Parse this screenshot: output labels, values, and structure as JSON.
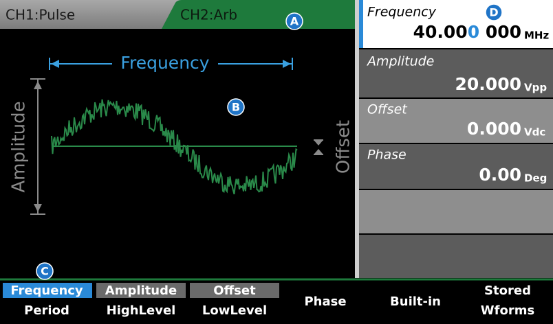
{
  "tabs": [
    {
      "label": "CH1:Pulse"
    },
    {
      "label": "CH2:Arb"
    }
  ],
  "display": {
    "frequency_label": "Frequency",
    "amplitude_label": "Amplitude",
    "offset_label": "Offset"
  },
  "parameters": [
    {
      "label": "Frequency",
      "value_parts": [
        "40.00",
        "0",
        " 000"
      ],
      "unit": "MHz"
    },
    {
      "label": "Amplitude",
      "value": "20.000",
      "unit": "Vpp"
    },
    {
      "label": "Offset",
      "value": "0.000",
      "unit": "Vdc"
    },
    {
      "label": "Phase",
      "value": "0.00",
      "unit": "Deg"
    }
  ],
  "softkeys": [
    {
      "lines": [
        "Frequency",
        "Period"
      ]
    },
    {
      "lines": [
        "Amplitude",
        "HighLevel"
      ]
    },
    {
      "lines": [
        "Offset",
        "LowLevel"
      ]
    },
    {
      "lines": [
        "Phase"
      ]
    },
    {
      "lines": [
        "Built-in"
      ]
    },
    {
      "lines": [
        "Stored",
        "Wforms"
      ]
    }
  ],
  "markers": [
    "A",
    "B",
    "C",
    "D"
  ]
}
